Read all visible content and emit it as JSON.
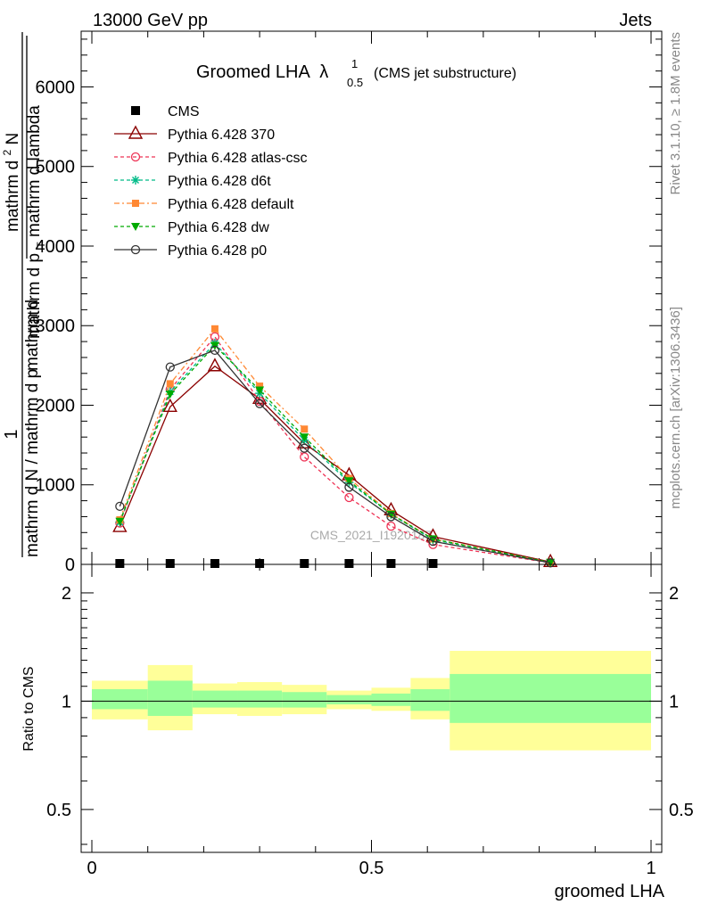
{
  "header": {
    "energy": "13000 GeV pp",
    "category": "Jets",
    "plot_title_main": "Groomed LHA",
    "plot_title_lambda": "λ",
    "plot_title_sup": "1",
    "plot_title_sub": "0.5",
    "plot_title_suffix": "(CMS jet substructure)",
    "side_rivet": "Rivet 3.1.10, ≥ 1.8M events",
    "side_mcplots": "mcplots.cern.ch [arXiv:1306.3436]",
    "watermark": "CMS_2021_I1920187"
  },
  "colors": {
    "cms": "#000000",
    "p370": "#8b0000",
    "atlas": "#ee3355",
    "d6t": "#00bb88",
    "default": "#ff8833",
    "dw": "#00aa00",
    "p0": "#333333",
    "band_inner": "#99ff99",
    "band_outer": "#ffff99"
  },
  "chart_data": [
    {
      "type": "line",
      "ylabel_num": "1",
      "ylabel_den": "mathrm d N / mathrm d p",
      "ylabel_main_top": "mathrm d",
      "ylabel_main_sup": "2",
      "ylabel_main_N": "N",
      "ylabel_main_bottom": "mathrm d p",
      "ylabel_main_T": "T",
      "ylabel_main_tail": " mathrm d lambda",
      "ylabel_extra": "mathrm d",
      "xlim": [
        -0.02,
        1.02
      ],
      "ylim": [
        0,
        6700
      ],
      "yticks": [
        {
          "v": 0,
          "label": "0"
        },
        {
          "v": 1000,
          "label": "1000"
        },
        {
          "v": 2000,
          "label": "2000"
        },
        {
          "v": 3000,
          "label": "3000"
        },
        {
          "v": 4000,
          "label": "4000"
        },
        {
          "v": 5000,
          "label": "5000"
        },
        {
          "v": 6000,
          "label": "6000"
        }
      ],
      "x": [
        0.05,
        0.14,
        0.22,
        0.3,
        0.38,
        0.46,
        0.535,
        0.61,
        0.82
      ],
      "legend": [
        {
          "key": "cms",
          "label": "CMS"
        },
        {
          "key": "p370",
          "label": "Pythia 6.428 370"
        },
        {
          "key": "atlas",
          "label": "Pythia 6.428 atlas-csc"
        },
        {
          "key": "d6t",
          "label": "Pythia 6.428 d6t"
        },
        {
          "key": "default",
          "label": "Pythia 6.428 default"
        },
        {
          "key": "dw",
          "label": "Pythia 6.428 dw"
        },
        {
          "key": "p0",
          "label": "Pythia 6.428 p0"
        }
      ],
      "series": [
        {
          "key": "cms",
          "name": "CMS",
          "values": [
            8,
            8,
            8,
            8,
            8,
            8,
            8,
            8,
            null
          ]
        },
        {
          "key": "p370",
          "name": "Pythia 6.428 370",
          "values": [
            470,
            1980,
            2490,
            2080,
            1520,
            1120,
            680,
            350,
            30
          ]
        },
        {
          "key": "atlas",
          "name": "Pythia 6.428 atlas-csc",
          "values": [
            520,
            2200,
            2860,
            2050,
            1350,
            840,
            480,
            250,
            20
          ]
        },
        {
          "key": "d6t",
          "name": "Pythia 6.428 d6t",
          "values": [
            530,
            2170,
            2780,
            2150,
            1560,
            1030,
            630,
            310,
            25
          ]
        },
        {
          "key": "default",
          "name": "Pythia 6.428 default",
          "values": [
            560,
            2270,
            2960,
            2240,
            1700,
            1080,
            640,
            320,
            25
          ]
        },
        {
          "key": "dw",
          "name": "Pythia 6.428 dw",
          "values": [
            540,
            2140,
            2750,
            2190,
            1600,
            1050,
            630,
            320,
            25
          ]
        },
        {
          "key": "p0",
          "name": "Pythia 6.428 p0",
          "values": [
            730,
            2480,
            2690,
            2020,
            1460,
            970,
            600,
            290,
            20
          ]
        }
      ]
    },
    {
      "type": "area",
      "ylabel": "Ratio to CMS",
      "xlabel": "groomed LHA",
      "xlim": [
        -0.02,
        1.02
      ],
      "ylim": [
        0.38,
        2.4
      ],
      "log_y": true,
      "yticks": [
        {
          "v": 0.5,
          "label": "0.5"
        },
        {
          "v": 1,
          "label": "1"
        },
        {
          "v": 2,
          "label": "2"
        }
      ],
      "xticks": [
        {
          "v": 0,
          "label": "0"
        },
        {
          "v": 0.5,
          "label": "0.5"
        },
        {
          "v": 1,
          "label": "1"
        }
      ],
      "bins": [
        {
          "x0": 0.0,
          "x1": 0.1,
          "outer": [
            0.89,
            1.14
          ],
          "inner": [
            0.95,
            1.08
          ]
        },
        {
          "x0": 0.1,
          "x1": 0.18,
          "outer": [
            0.83,
            1.26
          ],
          "inner": [
            0.91,
            1.14
          ]
        },
        {
          "x0": 0.18,
          "x1": 0.26,
          "outer": [
            0.92,
            1.12
          ],
          "inner": [
            0.96,
            1.07
          ]
        },
        {
          "x0": 0.26,
          "x1": 0.34,
          "outer": [
            0.91,
            1.13
          ],
          "inner": [
            0.96,
            1.07
          ]
        },
        {
          "x0": 0.34,
          "x1": 0.42,
          "outer": [
            0.92,
            1.11
          ],
          "inner": [
            0.96,
            1.06
          ]
        },
        {
          "x0": 0.42,
          "x1": 0.5,
          "outer": [
            0.95,
            1.07
          ],
          "inner": [
            0.98,
            1.04
          ]
        },
        {
          "x0": 0.5,
          "x1": 0.57,
          "outer": [
            0.94,
            1.09
          ],
          "inner": [
            0.97,
            1.05
          ]
        },
        {
          "x0": 0.57,
          "x1": 0.64,
          "outer": [
            0.89,
            1.16
          ],
          "inner": [
            0.94,
            1.08
          ]
        },
        {
          "x0": 0.64,
          "x1": 1.0,
          "outer": [
            0.73,
            1.38
          ],
          "inner": [
            0.87,
            1.19
          ]
        }
      ]
    }
  ]
}
